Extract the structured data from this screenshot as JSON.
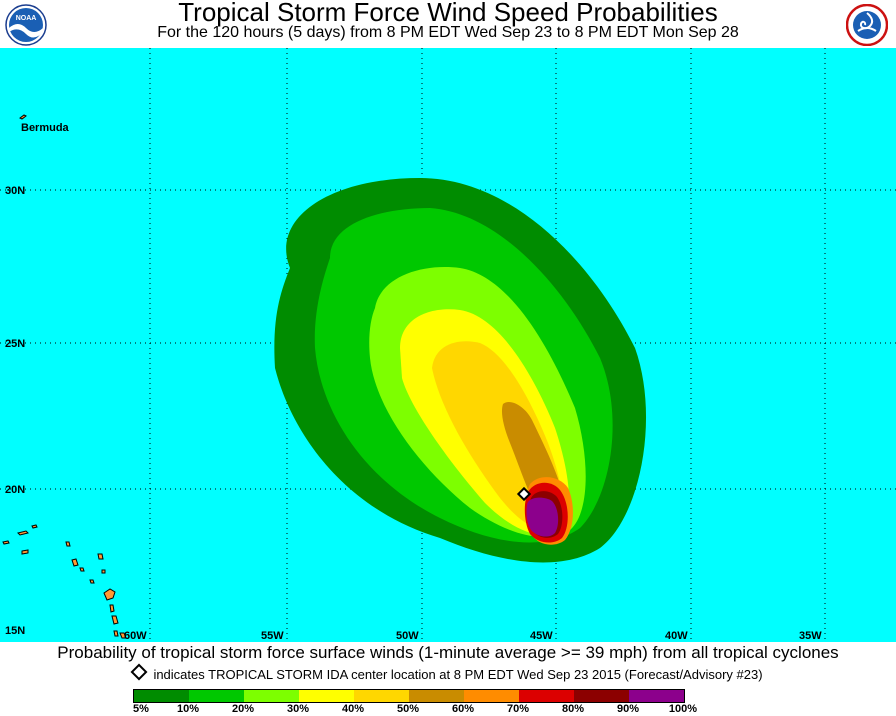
{
  "header": {
    "title": "Tropical Storm Force Wind Speed Probabilities",
    "subtitle": "For the 120 hours (5 days) from 8 PM EDT Wed Sep 23 to 8 PM EDT Mon Sep 28",
    "left_logo": {
      "text": "NOAA",
      "icon": "noaa-logo-icon"
    },
    "right_logo": {
      "icon": "nws-logo-icon"
    }
  },
  "map": {
    "ocean_color": "#00ffff",
    "land_color": "#ff9933",
    "place_label": "Bermuda",
    "lat_labels": [
      "30N",
      "25N",
      "20N",
      "15N"
    ],
    "lon_labels": [
      "60W",
      "55W",
      "50W",
      "45W",
      "40W",
      "35W"
    ],
    "storm_marker": {
      "name": "TROPICAL STORM IDA",
      "lat": 19.8,
      "lon": -46.0
    },
    "probability_colors": {
      "5-10": "#008c00",
      "10-20": "#00c800",
      "20-30": "#7dff00",
      "30-40": "#ffff00",
      "40-50": "#ffd700",
      "50-60": "#c98c00",
      "60-70": "#ff8c00",
      "70-80": "#dc0000",
      "80-90": "#8c0000",
      "90-100": "#8c008c"
    }
  },
  "caption": "Probability of tropical storm force surface winds (1-minute average >= 39 mph) from all tropical cyclones",
  "legend_note": "indicates TROPICAL STORM IDA center location at 8 PM EDT Wed Sep 23 2015 (Forecast/Advisory #23)",
  "colorbar": {
    "colors": [
      "#008c00",
      "#00c800",
      "#7dff00",
      "#ffff00",
      "#ffd700",
      "#c98c00",
      "#ff8c00",
      "#dc0000",
      "#8c0000",
      "#8c008c"
    ],
    "labels": [
      "5%",
      "10%",
      "20%",
      "30%",
      "40%",
      "50%",
      "60%",
      "70%",
      "80%",
      "90%",
      "100%"
    ]
  }
}
